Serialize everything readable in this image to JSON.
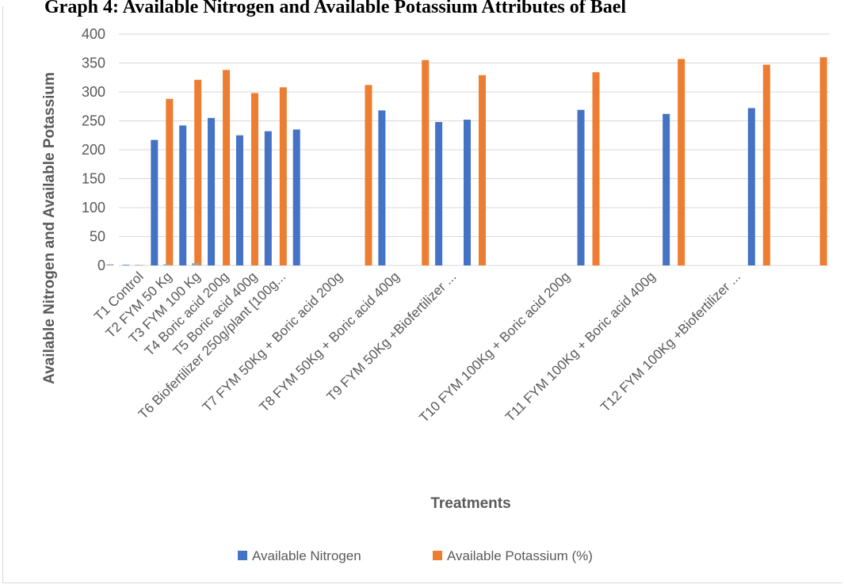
{
  "chart_data": {
    "type": "bar",
    "title": "Graph 4: Available Nitrogen and Available Potassium Attributes of Bael",
    "xlabel": "Treatments",
    "ylabel": "Available Nitrogen and Available Potassium",
    "ylim": [
      0,
      400
    ],
    "yticks": [
      "0",
      "50",
      "100",
      "150",
      "200",
      "250",
      "300",
      "350",
      "400"
    ],
    "grid": true,
    "legend": "bottom",
    "categories": [
      "T1     Control",
      "T2    FYM 50 Kg",
      "T3    FYM 100 Kg",
      "T4    Boric acid 200g",
      "T5    Boric acid 400g",
      "T6    Biofertilizer 250g/plant [100g...",
      "",
      "T7    FYM 50Kg + Boric acid 200g",
      "",
      "T8    FYM 50Kg + Boric acid 400g",
      "",
      "T9    FYM 50Kg +Biofertilizer ...",
      "",
      "",
      "",
      "T10  FYM 100Kg + Boric acid 200g",
      "",
      "",
      "T11    FYM 100Kg + Boric acid 400g",
      "",
      "",
      "T12  FYM 100Kg +Biofertilizer ...",
      "",
      "",
      ""
    ],
    "series": [
      {
        "name": "Available Nitrogen",
        "color": "#4472c4",
        "values": [
          1,
          217,
          242,
          255,
          225,
          232,
          235,
          null,
          null,
          268,
          null,
          248,
          252,
          null,
          null,
          null,
          269,
          null,
          null,
          262,
          null,
          null,
          272,
          null,
          null
        ]
      },
      {
        "name": "Available Potassium (%)",
        "color": "#ed7d31",
        "values": [
          0.5,
          288,
          321,
          338,
          298,
          308,
          null,
          null,
          312,
          null,
          355,
          null,
          329,
          null,
          null,
          null,
          334,
          null,
          null,
          357,
          null,
          null,
          347,
          null,
          360
        ]
      },
      {
        "name": "",
        "color": "#a5a5a5",
        "values": [
          2,
          1,
          2,
          4,
          null,
          null,
          null,
          null,
          null,
          null,
          null,
          null,
          null,
          null,
          null,
          null,
          null,
          null,
          null,
          null,
          null,
          null,
          null,
          null,
          null
        ]
      }
    ]
  }
}
